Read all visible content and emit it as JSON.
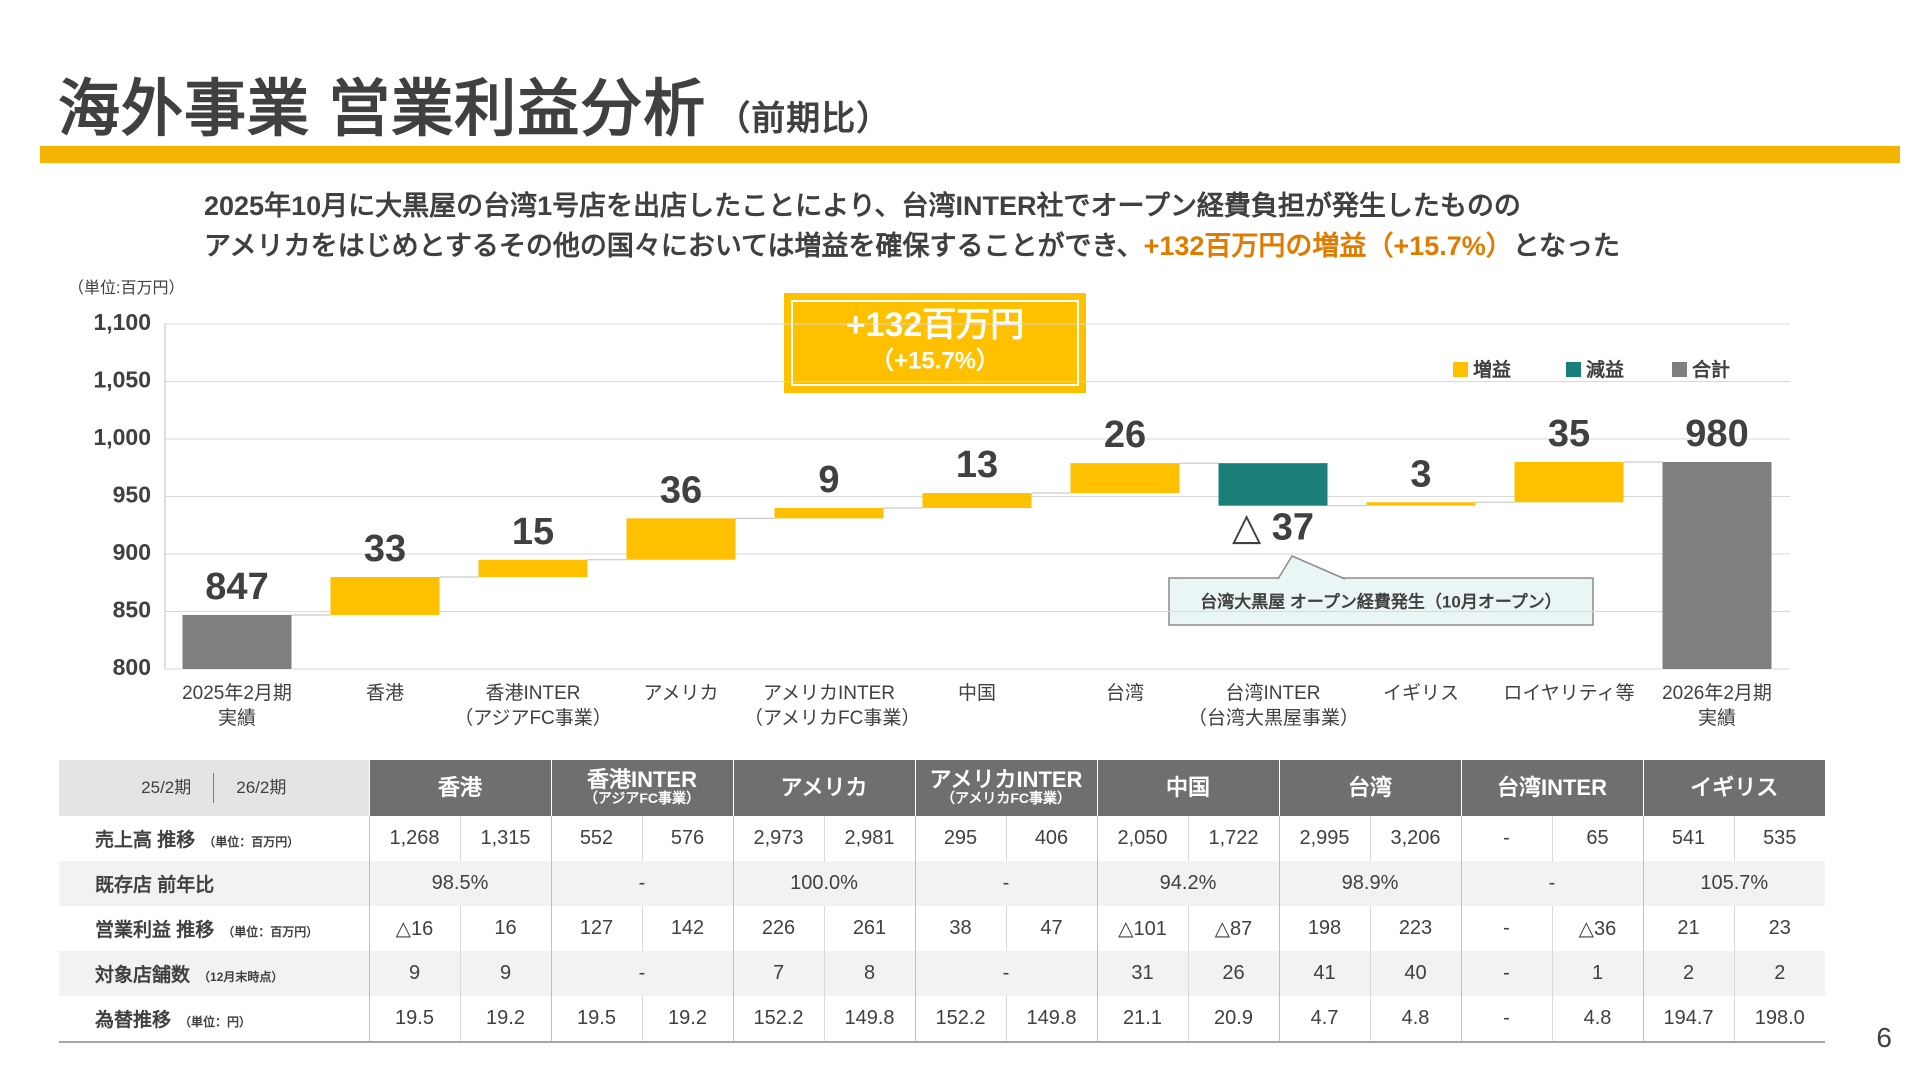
{
  "header": {
    "title": "海外事業 営業利益分析",
    "title_suffix": "（前期比）"
  },
  "summary": {
    "line1": "2025年10月に大黒屋の台湾1号店を出店したことにより、台湾INTER社でオープン経費負担が発生したものの",
    "line2_before": "アメリカをはじめとするその他の国々においては増益を確保することができ、",
    "line2_highlight": "+132百万円の増益（+15.7%）",
    "line2_after": "となった"
  },
  "chart_data": {
    "type": "waterfall",
    "unit_label": "（単位:百万円）",
    "callout": {
      "main": "+132百万円",
      "sub": "（+15.7%）"
    },
    "annotation": "台湾大黒屋 オープン経費発生（10月オープン）",
    "categories": [
      "2025年2月期\n実績",
      "香港",
      "香港INTER\n（アジアFC事業）",
      "アメリカ",
      "アメリカINTER\n（アメリカFC事業）",
      "中国",
      "台湾",
      "台湾INTER\n（台湾大黒屋事業）",
      "イギリス",
      "ロイヤリティ等",
      "2026年2月期\n実績"
    ],
    "values": [
      847,
      33,
      15,
      36,
      9,
      13,
      26,
      -37,
      3,
      35,
      980
    ],
    "value_labels": [
      "847",
      "33",
      "15",
      "36",
      "9",
      "13",
      "26",
      "△ 37",
      "3",
      "35",
      "980"
    ],
    "legend": [
      {
        "name": "増益",
        "color": "#FFC000"
      },
      {
        "name": "減益",
        "color": "#1B7F79"
      },
      {
        "name": "合計",
        "color": "#7F7F7F"
      }
    ],
    "ylim": [
      800,
      1100
    ],
    "yticks": [
      800,
      850,
      900,
      950,
      {
        "value": 1000,
        "label": "1,000"
      },
      {
        "value": 1050,
        "label": "1,050"
      },
      {
        "value": 1100,
        "label": "1,100"
      }
    ],
    "grid": true
  },
  "table": {
    "period_labels": [
      "25/2期",
      "26/2期"
    ],
    "groups": [
      {
        "name": "香港"
      },
      {
        "name": "香港INTER",
        "sub": "（アジアFC事業）"
      },
      {
        "name": "アメリカ"
      },
      {
        "name": "アメリカINTER",
        "sub": "（アメリカFC事業）"
      },
      {
        "name": "中国"
      },
      {
        "name": "台湾"
      },
      {
        "name": "台湾INTER"
      },
      {
        "name": "イギリス"
      }
    ],
    "rows": [
      {
        "label": "売上高 推移",
        "note": "（単位：百万円）",
        "cells": [
          [
            "1,268",
            "1,315"
          ],
          [
            "552",
            "576"
          ],
          [
            "2,973",
            "2,981"
          ],
          [
            "295",
            "406"
          ],
          [
            "2,050",
            "1,722"
          ],
          [
            "2,995",
            "3,206"
          ],
          [
            "-",
            "65"
          ],
          [
            "541",
            "535"
          ]
        ]
      },
      {
        "label": "既存店 前年比",
        "cells": [
          "98.5%",
          "-",
          "100.0%",
          "-",
          "94.2%",
          "98.9%",
          "-",
          "105.7%"
        ]
      },
      {
        "label": "営業利益 推移",
        "note": "（単位：百万円）",
        "cells": [
          [
            "△16",
            "16"
          ],
          [
            "127",
            "142"
          ],
          [
            "226",
            "261"
          ],
          [
            "38",
            "47"
          ],
          [
            "△101",
            "△87"
          ],
          [
            "198",
            "223"
          ],
          [
            "-",
            "△36"
          ],
          [
            "21",
            "23"
          ]
        ]
      },
      {
        "label": "対象店舗数",
        "note": "（12月末時点）",
        "cells": [
          [
            "9",
            "9"
          ],
          "-",
          [
            "7",
            "8"
          ],
          "-",
          [
            "31",
            "26"
          ],
          [
            "41",
            "40"
          ],
          [
            "-",
            "1"
          ],
          [
            "2",
            "2"
          ]
        ]
      },
      {
        "label": "為替推移",
        "note": "（単位：円）",
        "cells": [
          [
            "19.5",
            "19.2"
          ],
          [
            "19.5",
            "19.2"
          ],
          [
            "152.2",
            "149.8"
          ],
          [
            "152.2",
            "149.8"
          ],
          [
            "21.1",
            "20.9"
          ],
          [
            "4.7",
            "4.8"
          ],
          [
            "-",
            "4.8"
          ],
          [
            "194.7",
            "198.0"
          ]
        ]
      }
    ]
  },
  "page_number": "6"
}
